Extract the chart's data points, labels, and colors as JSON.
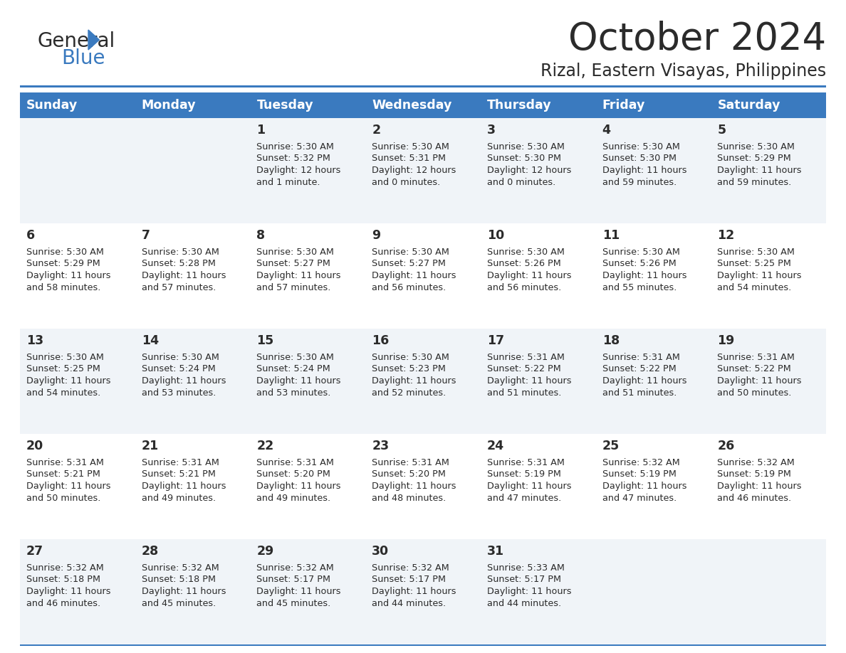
{
  "title": "October 2024",
  "subtitle": "Rizal, Eastern Visayas, Philippines",
  "header_bg": "#3a7abf",
  "header_text_color": "#ffffff",
  "cell_bg_odd": "#f0f4f8",
  "cell_bg_even": "#ffffff",
  "border_color": "#3a7abf",
  "days_of_week": [
    "Sunday",
    "Monday",
    "Tuesday",
    "Wednesday",
    "Thursday",
    "Friday",
    "Saturday"
  ],
  "title_color": "#2b2b2b",
  "subtitle_color": "#2b2b2b",
  "day_number_color": "#2b2b2b",
  "cell_text_color": "#2b2b2b",
  "calendar": [
    [
      {
        "day": "",
        "sunrise": "",
        "sunset": "",
        "daylight_h": "",
        "daylight_m": ""
      },
      {
        "day": "",
        "sunrise": "",
        "sunset": "",
        "daylight_h": "",
        "daylight_m": ""
      },
      {
        "day": "1",
        "sunrise": "5:30 AM",
        "sunset": "5:32 PM",
        "daylight_h": "12 hours",
        "daylight_m": "and 1 minute."
      },
      {
        "day": "2",
        "sunrise": "5:30 AM",
        "sunset": "5:31 PM",
        "daylight_h": "12 hours",
        "daylight_m": "and 0 minutes."
      },
      {
        "day": "3",
        "sunrise": "5:30 AM",
        "sunset": "5:30 PM",
        "daylight_h": "12 hours",
        "daylight_m": "and 0 minutes."
      },
      {
        "day": "4",
        "sunrise": "5:30 AM",
        "sunset": "5:30 PM",
        "daylight_h": "11 hours",
        "daylight_m": "and 59 minutes."
      },
      {
        "day": "5",
        "sunrise": "5:30 AM",
        "sunset": "5:29 PM",
        "daylight_h": "11 hours",
        "daylight_m": "and 59 minutes."
      }
    ],
    [
      {
        "day": "6",
        "sunrise": "5:30 AM",
        "sunset": "5:29 PM",
        "daylight_h": "11 hours",
        "daylight_m": "and 58 minutes."
      },
      {
        "day": "7",
        "sunrise": "5:30 AM",
        "sunset": "5:28 PM",
        "daylight_h": "11 hours",
        "daylight_m": "and 57 minutes."
      },
      {
        "day": "8",
        "sunrise": "5:30 AM",
        "sunset": "5:27 PM",
        "daylight_h": "11 hours",
        "daylight_m": "and 57 minutes."
      },
      {
        "day": "9",
        "sunrise": "5:30 AM",
        "sunset": "5:27 PM",
        "daylight_h": "11 hours",
        "daylight_m": "and 56 minutes."
      },
      {
        "day": "10",
        "sunrise": "5:30 AM",
        "sunset": "5:26 PM",
        "daylight_h": "11 hours",
        "daylight_m": "and 56 minutes."
      },
      {
        "day": "11",
        "sunrise": "5:30 AM",
        "sunset": "5:26 PM",
        "daylight_h": "11 hours",
        "daylight_m": "and 55 minutes."
      },
      {
        "day": "12",
        "sunrise": "5:30 AM",
        "sunset": "5:25 PM",
        "daylight_h": "11 hours",
        "daylight_m": "and 54 minutes."
      }
    ],
    [
      {
        "day": "13",
        "sunrise": "5:30 AM",
        "sunset": "5:25 PM",
        "daylight_h": "11 hours",
        "daylight_m": "and 54 minutes."
      },
      {
        "day": "14",
        "sunrise": "5:30 AM",
        "sunset": "5:24 PM",
        "daylight_h": "11 hours",
        "daylight_m": "and 53 minutes."
      },
      {
        "day": "15",
        "sunrise": "5:30 AM",
        "sunset": "5:24 PM",
        "daylight_h": "11 hours",
        "daylight_m": "and 53 minutes."
      },
      {
        "day": "16",
        "sunrise": "5:30 AM",
        "sunset": "5:23 PM",
        "daylight_h": "11 hours",
        "daylight_m": "and 52 minutes."
      },
      {
        "day": "17",
        "sunrise": "5:31 AM",
        "sunset": "5:22 PM",
        "daylight_h": "11 hours",
        "daylight_m": "and 51 minutes."
      },
      {
        "day": "18",
        "sunrise": "5:31 AM",
        "sunset": "5:22 PM",
        "daylight_h": "11 hours",
        "daylight_m": "and 51 minutes."
      },
      {
        "day": "19",
        "sunrise": "5:31 AM",
        "sunset": "5:22 PM",
        "daylight_h": "11 hours",
        "daylight_m": "and 50 minutes."
      }
    ],
    [
      {
        "day": "20",
        "sunrise": "5:31 AM",
        "sunset": "5:21 PM",
        "daylight_h": "11 hours",
        "daylight_m": "and 50 minutes."
      },
      {
        "day": "21",
        "sunrise": "5:31 AM",
        "sunset": "5:21 PM",
        "daylight_h": "11 hours",
        "daylight_m": "and 49 minutes."
      },
      {
        "day": "22",
        "sunrise": "5:31 AM",
        "sunset": "5:20 PM",
        "daylight_h": "11 hours",
        "daylight_m": "and 49 minutes."
      },
      {
        "day": "23",
        "sunrise": "5:31 AM",
        "sunset": "5:20 PM",
        "daylight_h": "11 hours",
        "daylight_m": "and 48 minutes."
      },
      {
        "day": "24",
        "sunrise": "5:31 AM",
        "sunset": "5:19 PM",
        "daylight_h": "11 hours",
        "daylight_m": "and 47 minutes."
      },
      {
        "day": "25",
        "sunrise": "5:32 AM",
        "sunset": "5:19 PM",
        "daylight_h": "11 hours",
        "daylight_m": "and 47 minutes."
      },
      {
        "day": "26",
        "sunrise": "5:32 AM",
        "sunset": "5:19 PM",
        "daylight_h": "11 hours",
        "daylight_m": "and 46 minutes."
      }
    ],
    [
      {
        "day": "27",
        "sunrise": "5:32 AM",
        "sunset": "5:18 PM",
        "daylight_h": "11 hours",
        "daylight_m": "and 46 minutes."
      },
      {
        "day": "28",
        "sunrise": "5:32 AM",
        "sunset": "5:18 PM",
        "daylight_h": "11 hours",
        "daylight_m": "and 45 minutes."
      },
      {
        "day": "29",
        "sunrise": "5:32 AM",
        "sunset": "5:17 PM",
        "daylight_h": "11 hours",
        "daylight_m": "and 45 minutes."
      },
      {
        "day": "30",
        "sunrise": "5:32 AM",
        "sunset": "5:17 PM",
        "daylight_h": "11 hours",
        "daylight_m": "and 44 minutes."
      },
      {
        "day": "31",
        "sunrise": "5:33 AM",
        "sunset": "5:17 PM",
        "daylight_h": "11 hours",
        "daylight_m": "and 44 minutes."
      },
      {
        "day": "",
        "sunrise": "",
        "sunset": "",
        "daylight_h": "",
        "daylight_m": ""
      },
      {
        "day": "",
        "sunrise": "",
        "sunset": "",
        "daylight_h": "",
        "daylight_m": ""
      }
    ]
  ],
  "logo_color_general": "#2b2b2b",
  "logo_color_blue": "#3a7abf",
  "fig_width": 11.88,
  "fig_height": 9.18,
  "dpi": 100
}
